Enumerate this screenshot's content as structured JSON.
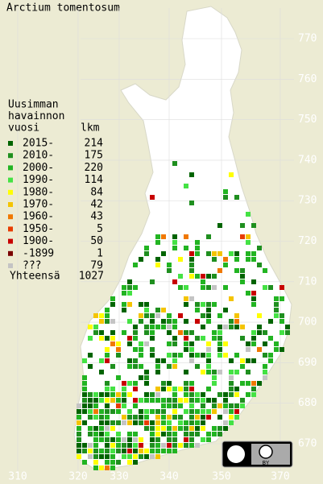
{
  "title": "Arctium tomentosum",
  "legend": {
    "heading": [
      "Uusimman",
      "havainnon",
      "vuosi"
    ],
    "count_heading": "lkm",
    "rows": [
      {
        "label": "2015-",
        "count": 214,
        "color": "#006400"
      },
      {
        "label": "2010-",
        "count": 175,
        "color": "#1f8f1f"
      },
      {
        "label": "2000-",
        "count": 220,
        "color": "#22b422"
      },
      {
        "label": "1990-",
        "count": 114,
        "color": "#44e244"
      },
      {
        "label": "1980-",
        "count": 84,
        "color": "#ffff00"
      },
      {
        "label": "1970-",
        "count": 42,
        "color": "#f4c400"
      },
      {
        "label": "1960-",
        "count": 43,
        "color": "#f07800"
      },
      {
        "label": "1950-",
        "count": 5,
        "color": "#e83c00"
      },
      {
        "label": "1900-",
        "count": 50,
        "color": "#c80000"
      },
      {
        "label": "-1899",
        "count": 1,
        "color": "#7a0000"
      },
      {
        "label": "???",
        "count": 79,
        "color": "#c4c4c4"
      }
    ],
    "total_label": "Yhteensä",
    "total": 1027
  },
  "y_axis": [
    770,
    760,
    750,
    740,
    730,
    720,
    710,
    700,
    690,
    680,
    670
  ],
  "x_axis": [
    310,
    320,
    330,
    340,
    350,
    370
  ],
  "license": {
    "badge": "BY"
  }
}
